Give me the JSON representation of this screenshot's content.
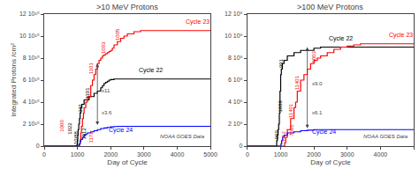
{
  "chart_data": [
    {
      "type": "step",
      "title": ">10 MeV Protons",
      "xlabel": "Day of Cycle",
      "ylabel": "Integrated Protons /cm²",
      "xlim": [
        0,
        5000
      ],
      "ylim": [
        0,
        120000000000.0
      ],
      "xticks": [
        0,
        1000,
        2000,
        3000,
        4000,
        5000
      ],
      "yticks": [
        0,
        {
          "value": 20000000000.0,
          "label": "2 10¹⁰"
        },
        {
          "value": 40000000000.0,
          "label": "4 10¹⁰"
        },
        {
          "value": 60000000000.0,
          "label": "6 10¹⁰"
        },
        {
          "value": 80000000000.0,
          "label": "8 10¹⁰"
        },
        {
          "value": 100000000000.0,
          "label": "10 10¹⁰"
        },
        {
          "value": 120000000000.0,
          "label": "12 10¹⁰"
        }
      ],
      "grid": false,
      "series": [
        {
          "name": "Cycle 22",
          "color": "black",
          "x": [
            0,
            950,
            960,
            980,
            1000,
            1010,
            1020,
            1040,
            1060,
            1080,
            1100,
            1130,
            1200,
            1350,
            1500,
            1600,
            1700,
            1750,
            1800,
            1850,
            1900,
            1950,
            2000,
            2100,
            2200,
            2300,
            2500,
            3000,
            5000
          ],
          "values": [
            0,
            0,
            500000000.0,
            1000000000.0,
            5000000000.0,
            10000000000.0,
            15000000000.0,
            20000000000.0,
            25000000000.0,
            30000000000.0,
            35000000000.0,
            38000000000.0,
            42000000000.0,
            45000000000.0,
            48000000000.0,
            50000000000.0,
            53000000000.0,
            55000000000.0,
            57000000000.0,
            58000000000.0,
            59000000000.0,
            60000000000.0,
            60500000000.0,
            61000000000.0,
            61000000000.0,
            61000000000.0,
            61000000000.0,
            61000000000.0,
            61000000000.0
          ],
          "label": {
            "x": 2800,
            "y": 64000000000.0
          },
          "event_labels": [
            {
              "x": 975,
              "y": 500000000.0,
              "text": "10/88"
            },
            {
              "x": 1005,
              "y": 5000000000.0,
              "text": "1012"
            },
            {
              "x": 1015,
              "y": 10000000000.0,
              "text": "1022"
            },
            {
              "x": 1080,
              "y": 30000000000.0,
              "text": "391"
            },
            {
              "x": 1300,
              "y": 42000000000.0,
              "text": "1101"
            }
          ]
        },
        {
          "name": "Cycle 23",
          "color": "red",
          "x": [
            0,
            1050,
            1060,
            1080,
            1100,
            1120,
            1150,
            1180,
            1200,
            1250,
            1300,
            1400,
            1450,
            1500,
            1550,
            1600,
            1650,
            1700,
            1750,
            1800,
            1850,
            1900,
            1950,
            2000,
            2050,
            2100,
            2200,
            2300,
            2400,
            2500,
            2700,
            2900,
            3100,
            3300,
            3500,
            4000,
            5000
          ],
          "values": [
            0,
            0,
            2000000000.0,
            5000000000.0,
            12000000000.0,
            18000000000.0,
            25000000000.0,
            30000000000.0,
            35000000000.0,
            40000000000.0,
            45000000000.0,
            55000000000.0,
            60000000000.0,
            65000000000.0,
            70000000000.0,
            75000000000.0,
            78000000000.0,
            80000000000.0,
            82000000000.0,
            83000000000.0,
            84000000000.0,
            85000000000.0,
            86000000000.0,
            87000000000.0,
            89000000000.0,
            92000000000.0,
            95000000000.0,
            98000000000.0,
            100000000000.0,
            102000000000.0,
            104000000000.0,
            105000000000.0,
            105000000000.0,
            105000000000.0,
            105000000000.0,
            105000000000.0,
            105000000000.0
          ],
          "label": {
            "x": 4200,
            "y": 108000000000.0
          },
          "event_labels": [
            {
              "x": 1060,
              "y": 2000000000.0,
              "text": "1172"
            },
            {
              "x": 1080,
              "y": 12000000000.0,
              "text": "1000"
            },
            {
              "x": 1500,
              "y": 65000000000.0,
              "text": "1101"
            },
            {
              "x": 1800,
              "y": 83000000000.0,
              "text": "1003"
            },
            {
              "x": 2200,
              "y": 95000000000.0,
              "text": "1005"
            }
          ]
        },
        {
          "name": "Cycle 24",
          "color": "blue",
          "x": [
            0,
            1020,
            1040,
            1060,
            1080,
            1100,
            1150,
            1200,
            1250,
            1300,
            1400,
            1500,
            1600,
            1700,
            1800,
            1900,
            2000,
            2100,
            2200,
            2300,
            2500,
            5000
          ],
          "values": [
            0,
            0,
            1000000000.0,
            2000000000.0,
            4000000000.0,
            6000000000.0,
            8000000000.0,
            10000000000.0,
            11000000000.0,
            12000000000.0,
            13000000000.0,
            14000000000.0,
            15000000000.0,
            16000000000.0,
            16500000000.0,
            17000000000.0,
            17500000000.0,
            17800000000.0,
            18000000000.0,
            18000000000.0,
            18000000000.0,
            18000000000.0
          ],
          "label": {
            "x": 1900,
            "y": 10000000000.0
          },
          "event_labels": []
        }
      ],
      "annotations": [
        {
          "text": "NOAA GOES Data"
        }
      ],
      "arrow": {
        "x": 1600,
        "y1": 18000000000.0,
        "y2": 75000000000.0,
        "labels": [
          "x3.6",
          "x11"
        ]
      }
    },
    {
      "type": "step",
      "title": ">100 MeV Protons",
      "xlabel": "Day of Cycle",
      "xlim": [
        0,
        5000
      ],
      "ylim": [
        0,
        1200000000.0
      ],
      "xticks": [
        0,
        1000,
        2000,
        3000,
        4000,
        5000
      ],
      "yticks": [
        0,
        {
          "value": 200000000.0,
          "label": "2 10⁸"
        },
        {
          "value": 400000000.0,
          "label": "4 10⁸"
        },
        {
          "value": 600000000.0,
          "label": "6 10⁸"
        },
        {
          "value": 800000000.0,
          "label": "8 10⁸"
        },
        {
          "value": 1000000000.0,
          "label": "10 10⁸"
        },
        {
          "value": 1200000000.0,
          "label": "12 10⁸"
        }
      ],
      "grid": false,
      "series": [
        {
          "name": "Cycle 22",
          "color": "black",
          "x": [
            0,
            870,
            880,
            900,
            920,
            940,
            960,
            980,
            1000,
            1020,
            1050,
            1100,
            1200,
            1400,
            1600,
            2000,
            2200,
            5000
          ],
          "values": [
            0,
            0,
            50000000.0,
            100000000.0,
            150000000.0,
            200000000.0,
            300000000.0,
            500000000.0,
            650000000.0,
            700000000.0,
            750000000.0,
            780000000.0,
            820000000.0,
            850000000.0,
            870000000.0,
            890000000.0,
            900000000.0,
            900000000.0
          ],
          "label": {
            "x": 2400,
            "y": 930000000.0
          },
          "event_labels": [
            {
              "x": 880,
              "y": 50000000.0,
              "text": "969"
            },
            {
              "x": 960,
              "y": 300000000.0,
              "text": "1089"
            },
            {
              "x": 1020,
              "y": 700000000.0,
              "text": "991"
            }
          ]
        },
        {
          "name": "Cycle 23",
          "color": "red",
          "x": [
            0,
            1100,
            1120,
            1150,
            1200,
            1300,
            1400,
            1450,
            1500,
            1600,
            1700,
            1800,
            1900,
            2000,
            2100,
            2200,
            2400,
            2600,
            2800,
            3000,
            3200,
            3400,
            5000
          ],
          "values": [
            0,
            0,
            30000000.0,
            80000000.0,
            150000000.0,
            250000000.0,
            350000000.0,
            400000000.0,
            500000000.0,
            600000000.0,
            650000000.0,
            700000000.0,
            750000000.0,
            780000000.0,
            800000000.0,
            820000000.0,
            850000000.0,
            880000000.0,
            900000000.0,
            910000000.0,
            920000000.0,
            930000000.0,
            930000000.0
          ],
          "label": {
            "x": 4200,
            "y": 960000000.0
          },
          "event_labels": [
            {
              "x": 1110,
              "y": 30000000.0,
              "text": "7/12"
            },
            {
              "x": 1140,
              "y": 80000000.0,
              "text": "7001"
            },
            {
              "x": 1300,
              "y": 250000000.0,
              "text": "11401"
            },
            {
              "x": 1500,
              "y": 500000000.0,
              "text": "11401"
            },
            {
              "x": 1900,
              "y": 750000000.0,
              "text": "1003"
            }
          ]
        },
        {
          "name": "Cycle 24",
          "color": "blue",
          "x": [
            0,
            990,
            1010,
            1030,
            1060,
            1100,
            1200,
            1400,
            1600,
            1800,
            2000,
            2200,
            5000
          ],
          "values": [
            0,
            0,
            20000000.0,
            50000000.0,
            80000000.0,
            100000000.0,
            120000000.0,
            130000000.0,
            140000000.0,
            145000000.0,
            150000000.0,
            150000000.0,
            150000000.0
          ],
          "label": {
            "x": 1900,
            "y": 80000000.0
          },
          "event_labels": []
        }
      ],
      "annotations": [
        {
          "text": "NOAA GOES Data"
        }
      ],
      "arrow": {
        "x": 1800,
        "y1": 150000000.0,
        "y2": 900000000.0,
        "labels": [
          "x6.1",
          "x9.0"
        ]
      }
    }
  ]
}
